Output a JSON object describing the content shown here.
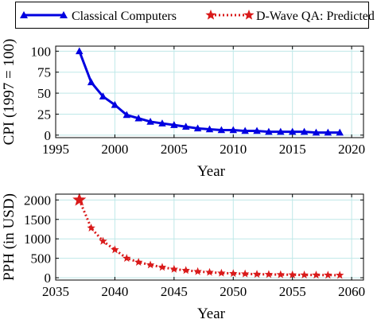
{
  "legend": {
    "placement": "top",
    "entries": [
      {
        "label": "Classical Computers",
        "color": "#0000e0",
        "marker": "triangle",
        "line": "solid"
      },
      {
        "label": "D-Wave QA: Predicted",
        "color": "#d91a1a",
        "marker": "star",
        "line": "dotted"
      }
    ]
  },
  "chart_data": [
    {
      "type": "line",
      "xlabel": "Year",
      "ylabel": "CPI (1997 = 100)",
      "xlim": [
        1995,
        2021
      ],
      "ylim": [
        -3,
        106
      ],
      "xticks": [
        1995,
        2000,
        2005,
        2010,
        2015,
        2020
      ],
      "yticks": [
        0,
        25,
        50,
        75,
        100
      ],
      "grid": true,
      "series": [
        {
          "name": "Classical Computers",
          "color": "#0000e0",
          "marker": "triangle",
          "line": "solid",
          "x": [
            1997,
            1998,
            1999,
            2000,
            2001,
            2002,
            2003,
            2004,
            2005,
            2006,
            2007,
            2008,
            2009,
            2010,
            2011,
            2012,
            2013,
            2014,
            2015,
            2016,
            2017,
            2018,
            2019
          ],
          "y": [
            100,
            63,
            46,
            36,
            24,
            20,
            16,
            14,
            12,
            10,
            8,
            7,
            6,
            6,
            5,
            5,
            4,
            4,
            4,
            4,
            3,
            3,
            3
          ]
        }
      ]
    },
    {
      "type": "line",
      "xlabel": "Year",
      "ylabel": "PPH (in USD)",
      "xlim": [
        2035,
        2061
      ],
      "ylim": [
        -60,
        2150
      ],
      "xticks": [
        2035,
        2040,
        2045,
        2050,
        2055,
        2060
      ],
      "yticks": [
        0,
        500,
        1000,
        1500,
        2000
      ],
      "grid": true,
      "series": [
        {
          "name": "D-Wave QA: Predicted",
          "color": "#d91a1a",
          "marker": "star",
          "line": "dotted",
          "x": [
            2037,
            2038,
            2039,
            2040,
            2041,
            2042,
            2043,
            2044,
            2045,
            2046,
            2047,
            2048,
            2049,
            2050,
            2051,
            2052,
            2053,
            2054,
            2055,
            2056,
            2057,
            2058,
            2059
          ],
          "y": [
            2000,
            1280,
            940,
            720,
            500,
            400,
            330,
            270,
            220,
            190,
            160,
            140,
            120,
            110,
            100,
            90,
            85,
            80,
            75,
            72,
            70,
            68,
            65
          ]
        }
      ]
    }
  ]
}
